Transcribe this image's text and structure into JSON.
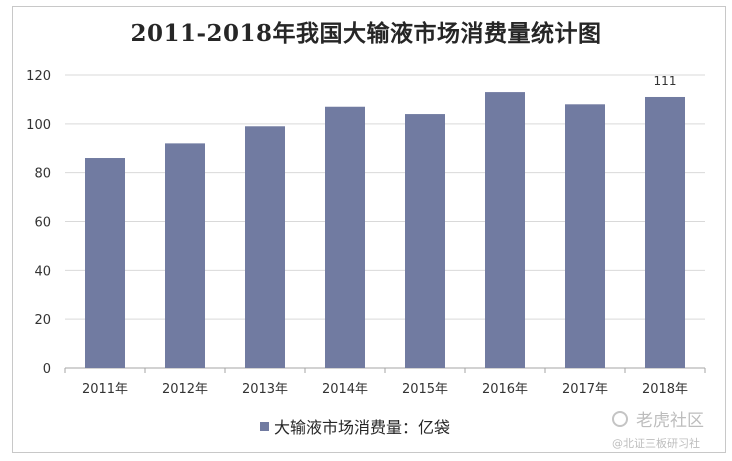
{
  "chart_data": {
    "type": "bar",
    "title": "2011-2018年我国大输液市场消费量统计图",
    "categories": [
      "2011年",
      "2012年",
      "2013年",
      "2014年",
      "2015年",
      "2016年",
      "2017年",
      "2018年"
    ],
    "series": [
      {
        "name": "大输液市场消费量：亿袋",
        "values": [
          86,
          92,
          99,
          107,
          104,
          113,
          108,
          111
        ]
      }
    ],
    "data_labels": [
      null,
      null,
      null,
      null,
      null,
      null,
      null,
      "111"
    ],
    "ylim": [
      0,
      120
    ],
    "yticks": [
      0,
      20,
      40,
      60,
      80,
      100,
      120
    ],
    "grid": true,
    "legend_position": "bottom",
    "bar_color": "#717ba1"
  },
  "watermark": {
    "line1": "老虎社区",
    "line2": "@北证三板研习社"
  }
}
